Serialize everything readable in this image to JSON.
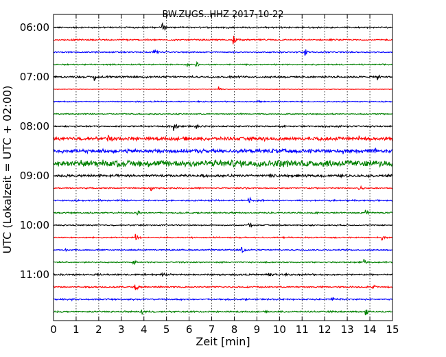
{
  "chart_data": {
    "type": "line",
    "title": "BW.ZUGS..HHZ 2017-10-22",
    "xlabel": "Zeit  [min]",
    "ylabel": "UTC (Lokalzeit = UTC + 02:00)",
    "xlim": [
      0,
      15
    ],
    "x_ticks": [
      "0",
      "1",
      "2",
      "3",
      "4",
      "5",
      "6",
      "7",
      "8",
      "9",
      "10",
      "11",
      "12",
      "13",
      "14",
      "15"
    ],
    "y_ticks": [
      "06:00",
      "07:00",
      "08:00",
      "09:00",
      "10:00",
      "11:00"
    ],
    "grid": "vertical dotted lines at each minute",
    "color_cycle": [
      "#000000",
      "#ff0000",
      "#0000ff",
      "#008000"
    ],
    "traces": [
      {
        "start": "06:00",
        "color": "#000000",
        "events": [
          {
            "t": 4.8,
            "amp": 1.0
          },
          {
            "t": 2.9,
            "amp": 0.3
          },
          {
            "t": 10.0,
            "amp": 0.3
          }
        ],
        "noise": 0.12
      },
      {
        "start": "06:15",
        "color": "#ff0000",
        "events": [
          {
            "t": 7.95,
            "amp": 0.9
          },
          {
            "t": 2.0,
            "amp": 0.2
          }
        ],
        "noise": 0.12
      },
      {
        "start": "06:30",
        "color": "#0000ff",
        "events": [
          {
            "t": 4.4,
            "amp": 1.0
          },
          {
            "t": 11.1,
            "amp": 0.8
          }
        ],
        "noise": 0.1
      },
      {
        "start": "06:45",
        "color": "#008000",
        "events": [
          {
            "t": 5.9,
            "amp": 0.5
          },
          {
            "t": 6.3,
            "amp": 0.5
          }
        ],
        "noise": 0.1
      },
      {
        "start": "07:00",
        "color": "#000000",
        "events": [
          {
            "t": 1.8,
            "amp": 0.8
          },
          {
            "t": 14.3,
            "amp": 1.0
          },
          {
            "t": 7.8,
            "amp": 0.3
          }
        ],
        "noise": 0.14
      },
      {
        "start": "07:15",
        "color": "#ff0000",
        "events": [
          {
            "t": 7.3,
            "amp": 0.5
          }
        ],
        "noise": 0.05
      },
      {
        "start": "07:30",
        "color": "#0000ff",
        "events": [
          {
            "t": 9.0,
            "amp": 0.5
          }
        ],
        "noise": 0.09
      },
      {
        "start": "07:45",
        "color": "#008000",
        "events": [],
        "noise": 0.09
      },
      {
        "start": "08:00",
        "color": "#000000",
        "events": [
          {
            "t": 5.3,
            "amp": 0.9
          },
          {
            "t": 6.3,
            "amp": 0.5
          },
          {
            "t": 12.6,
            "amp": 0.3
          }
        ],
        "noise": 0.12
      },
      {
        "start": "08:15",
        "color": "#ff0000",
        "events": [
          {
            "t": 2.4,
            "amp": 0.8
          },
          {
            "t": 9.3,
            "amp": 0.6
          },
          {
            "t": 13.5,
            "amp": 0.6
          }
        ],
        "noise": 0.28
      },
      {
        "start": "08:30",
        "color": "#0000ff",
        "events": [
          {
            "t": 9.7,
            "amp": 0.8
          },
          {
            "t": 12.8,
            "amp": 0.7
          },
          {
            "t": 14.2,
            "amp": 0.9
          }
        ],
        "noise": 0.3
      },
      {
        "start": "08:45",
        "color": "#008000",
        "events": [
          {
            "t": 1.0,
            "amp": 0.7
          },
          {
            "t": 2.4,
            "amp": 0.8
          },
          {
            "t": 13.7,
            "amp": 0.8
          }
        ],
        "noise": 0.55
      },
      {
        "start": "09:00",
        "color": "#000000",
        "events": [
          {
            "t": 2.0,
            "amp": 0.6
          },
          {
            "t": 9.6,
            "amp": 0.6
          }
        ],
        "noise": 0.2
      },
      {
        "start": "09:15",
        "color": "#ff0000",
        "events": [
          {
            "t": 4.3,
            "amp": 0.6
          },
          {
            "t": 8.4,
            "amp": 0.6
          },
          {
            "t": 13.5,
            "amp": 0.8
          }
        ],
        "noise": 0.1
      },
      {
        "start": "09:30",
        "color": "#0000ff",
        "events": [
          {
            "t": 8.6,
            "amp": 1.0
          }
        ],
        "noise": 0.12
      },
      {
        "start": "09:45",
        "color": "#008000",
        "events": [
          {
            "t": 3.7,
            "amp": 0.7
          },
          {
            "t": 13.8,
            "amp": 0.9
          }
        ],
        "noise": 0.12
      },
      {
        "start": "10:00",
        "color": "#000000",
        "events": [
          {
            "t": 3.8,
            "amp": 0.4
          },
          {
            "t": 8.6,
            "amp": 0.8
          }
        ],
        "noise": 0.1
      },
      {
        "start": "10:15",
        "color": "#ff0000",
        "events": [
          {
            "t": 3.6,
            "amp": 0.8
          },
          {
            "t": 14.5,
            "amp": 0.8
          }
        ],
        "noise": 0.1
      },
      {
        "start": "10:30",
        "color": "#0000ff",
        "events": [
          {
            "t": 8.3,
            "amp": 0.9
          },
          {
            "t": 0.5,
            "amp": 0.4
          }
        ],
        "noise": 0.1
      },
      {
        "start": "10:45",
        "color": "#008000",
        "events": [
          {
            "t": 3.5,
            "amp": 0.7
          },
          {
            "t": 13.7,
            "amp": 0.7
          }
        ],
        "noise": 0.1
      },
      {
        "start": "11:00",
        "color": "#000000",
        "events": [
          {
            "t": 9.5,
            "amp": 0.7
          },
          {
            "t": 4.8,
            "amp": 0.3
          }
        ],
        "noise": 0.14
      },
      {
        "start": "11:15",
        "color": "#ff0000",
        "events": [
          {
            "t": 3.6,
            "amp": 0.8
          },
          {
            "t": 14.1,
            "amp": 0.8
          },
          {
            "t": 9.2,
            "amp": 0.3
          }
        ],
        "noise": 0.12
      },
      {
        "start": "11:30",
        "color": "#0000ff",
        "events": [
          {
            "t": 12.3,
            "amp": 0.8
          },
          {
            "t": 0.8,
            "amp": 0.3
          }
        ],
        "noise": 0.12
      },
      {
        "start": "11:45",
        "color": "#008000",
        "events": [
          {
            "t": 3.9,
            "amp": 0.6
          },
          {
            "t": 13.8,
            "amp": 0.7
          }
        ],
        "noise": 0.12
      }
    ]
  }
}
